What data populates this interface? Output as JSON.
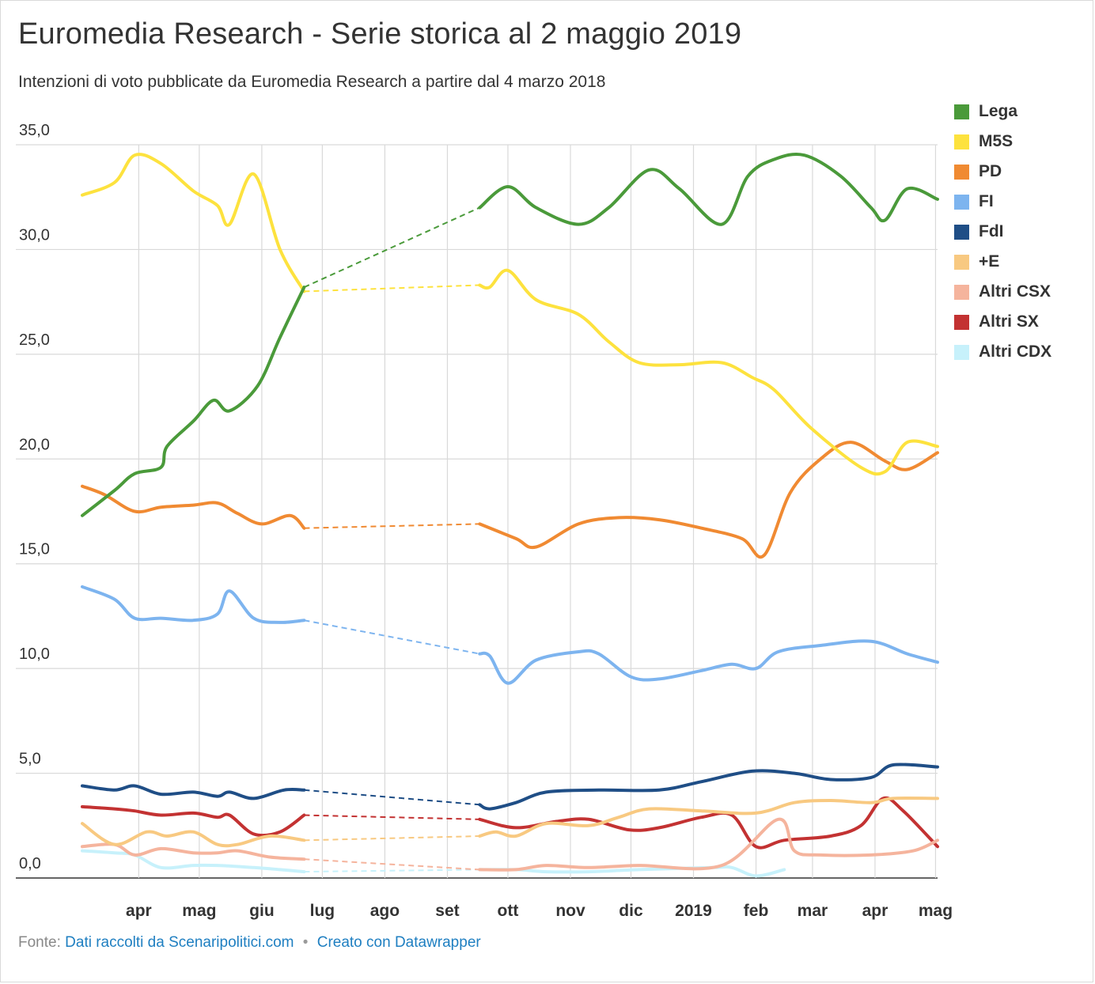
{
  "title": "Euromedia Research - Serie storica al 2 maggio 2019",
  "subtitle": "Intenzioni di voto pubblicate da Euromedia Research a partire dal 4 marzo 2018",
  "footer": {
    "prefix": "Fonte:",
    "source": "Dati raccolti da Scenaripolitici.com",
    "separator": "•",
    "credit": "Creato con Datawrapper"
  },
  "chart_data": {
    "type": "line",
    "title": "Euromedia Research - Serie storica al 2 maggio 2019",
    "subtitle": "Intenzioni di voto pubblicate da Euromedia Research a partire dal 4 marzo 2018",
    "xlabel": "",
    "ylabel": "",
    "ylim": [
      0,
      35
    ],
    "yticks": [
      0,
      5,
      10,
      15,
      20,
      25,
      30,
      35
    ],
    "ytick_labels": [
      "0,0",
      "5,0",
      "10,0",
      "15,0",
      "20,0",
      "25,0",
      "30,0",
      "35,0"
    ],
    "xlim": [
      "2018-03-04",
      "2019-05-02"
    ],
    "xticks": [
      {
        "date": "2018-04-01",
        "label": "apr"
      },
      {
        "date": "2018-05-01",
        "label": "mag"
      },
      {
        "date": "2018-06-01",
        "label": "giu"
      },
      {
        "date": "2018-07-01",
        "label": "lug"
      },
      {
        "date": "2018-08-01",
        "label": "ago"
      },
      {
        "date": "2018-09-01",
        "label": "set"
      },
      {
        "date": "2018-10-01",
        "label": "ott"
      },
      {
        "date": "2018-11-01",
        "label": "nov"
      },
      {
        "date": "2018-12-01",
        "label": "dic"
      },
      {
        "date": "2019-01-01",
        "label": "2019"
      },
      {
        "date": "2019-02-01",
        "label": "feb"
      },
      {
        "date": "2019-03-01",
        "label": "mar"
      },
      {
        "date": "2019-04-01",
        "label": "apr"
      },
      {
        "date": "2019-05-01",
        "label": "mag"
      }
    ],
    "gap": {
      "start": "2018-06-22",
      "end": "2018-09-17",
      "style": "dashed"
    },
    "grid": true,
    "legend": "right",
    "series": [
      {
        "name": "Lega",
        "color": "#4a9a3a",
        "points": [
          [
            "2018-03-04",
            17.3
          ],
          [
            "2018-03-20",
            18.5
          ],
          [
            "2018-03-30",
            19.3
          ],
          [
            "2018-04-12",
            19.6
          ],
          [
            "2018-04-15",
            20.6
          ],
          [
            "2018-04-28",
            21.8
          ],
          [
            "2018-05-08",
            22.8
          ],
          [
            "2018-05-16",
            22.3
          ],
          [
            "2018-05-30",
            23.5
          ],
          [
            "2018-06-10",
            25.8
          ],
          [
            "2018-06-22",
            28.2
          ],
          [
            "2018-09-17",
            32.0
          ],
          [
            "2018-10-01",
            33.0
          ],
          [
            "2018-10-15",
            32.0
          ],
          [
            "2018-11-05",
            31.2
          ],
          [
            "2018-11-20",
            32.0
          ],
          [
            "2018-12-10",
            33.8
          ],
          [
            "2018-12-25",
            32.9
          ],
          [
            "2019-01-15",
            31.2
          ],
          [
            "2019-01-28",
            33.5
          ],
          [
            "2019-02-10",
            34.3
          ],
          [
            "2019-02-25",
            34.5
          ],
          [
            "2019-03-15",
            33.5
          ],
          [
            "2019-03-30",
            32.0
          ],
          [
            "2019-04-06",
            31.4
          ],
          [
            "2019-04-17",
            32.9
          ],
          [
            "2019-05-02",
            32.4
          ]
        ]
      },
      {
        "name": "M5S",
        "color": "#fde23e",
        "points": [
          [
            "2018-03-04",
            32.6
          ],
          [
            "2018-03-20",
            33.2
          ],
          [
            "2018-03-30",
            34.5
          ],
          [
            "2018-04-12",
            34.1
          ],
          [
            "2018-04-28",
            32.8
          ],
          [
            "2018-05-10",
            32.1
          ],
          [
            "2018-05-16",
            31.2
          ],
          [
            "2018-05-28",
            33.6
          ],
          [
            "2018-06-10",
            30.0
          ],
          [
            "2018-06-22",
            28.0
          ],
          [
            "2018-09-17",
            28.3
          ],
          [
            "2018-09-22",
            28.2
          ],
          [
            "2018-10-01",
            29.0
          ],
          [
            "2018-10-15",
            27.6
          ],
          [
            "2018-11-05",
            26.9
          ],
          [
            "2018-11-20",
            25.6
          ],
          [
            "2018-12-05",
            24.6
          ],
          [
            "2018-12-25",
            24.5
          ],
          [
            "2019-01-15",
            24.6
          ],
          [
            "2019-01-30",
            23.9
          ],
          [
            "2019-02-10",
            23.3
          ],
          [
            "2019-02-28",
            21.5
          ],
          [
            "2019-03-25",
            19.6
          ],
          [
            "2019-04-06",
            19.4
          ],
          [
            "2019-04-17",
            20.8
          ],
          [
            "2019-05-02",
            20.6
          ]
        ]
      },
      {
        "name": "PD",
        "color": "#f08a32",
        "points": [
          [
            "2018-03-04",
            18.7
          ],
          [
            "2018-03-15",
            18.3
          ],
          [
            "2018-03-30",
            17.5
          ],
          [
            "2018-04-12",
            17.7
          ],
          [
            "2018-04-28",
            17.8
          ],
          [
            "2018-05-10",
            17.9
          ],
          [
            "2018-05-20",
            17.4
          ],
          [
            "2018-06-01",
            16.9
          ],
          [
            "2018-06-15",
            17.3
          ],
          [
            "2018-06-22",
            16.7
          ],
          [
            "2018-09-17",
            16.9
          ],
          [
            "2018-10-05",
            16.2
          ],
          [
            "2018-10-15",
            15.8
          ],
          [
            "2018-11-05",
            16.9
          ],
          [
            "2018-11-25",
            17.2
          ],
          [
            "2018-12-15",
            17.1
          ],
          [
            "2019-01-05",
            16.7
          ],
          [
            "2019-01-25",
            16.2
          ],
          [
            "2019-02-05",
            15.4
          ],
          [
            "2019-02-18",
            18.4
          ],
          [
            "2019-03-05",
            20.0
          ],
          [
            "2019-03-20",
            20.8
          ],
          [
            "2019-04-06",
            19.9
          ],
          [
            "2019-04-17",
            19.5
          ],
          [
            "2019-05-02",
            20.3
          ]
        ]
      },
      {
        "name": "FI",
        "color": "#7db4ef",
        "points": [
          [
            "2018-03-04",
            13.9
          ],
          [
            "2018-03-20",
            13.3
          ],
          [
            "2018-03-30",
            12.4
          ],
          [
            "2018-04-12",
            12.4
          ],
          [
            "2018-04-28",
            12.3
          ],
          [
            "2018-05-10",
            12.6
          ],
          [
            "2018-05-16",
            13.7
          ],
          [
            "2018-05-28",
            12.4
          ],
          [
            "2018-06-10",
            12.2
          ],
          [
            "2018-06-22",
            12.3
          ],
          [
            "2018-09-17",
            10.7
          ],
          [
            "2018-09-22",
            10.6
          ],
          [
            "2018-10-01",
            9.3
          ],
          [
            "2018-10-15",
            10.4
          ],
          [
            "2018-11-05",
            10.8
          ],
          [
            "2018-11-15",
            10.7
          ],
          [
            "2018-12-01",
            9.6
          ],
          [
            "2018-12-15",
            9.5
          ],
          [
            "2019-01-05",
            9.9
          ],
          [
            "2019-01-20",
            10.2
          ],
          [
            "2019-02-01",
            10.0
          ],
          [
            "2019-02-12",
            10.8
          ],
          [
            "2019-03-05",
            11.1
          ],
          [
            "2019-03-30",
            11.3
          ],
          [
            "2019-04-17",
            10.7
          ],
          [
            "2019-05-02",
            10.3
          ]
        ]
      },
      {
        "name": "FdI",
        "color": "#1f4e86",
        "points": [
          [
            "2018-03-04",
            4.4
          ],
          [
            "2018-03-20",
            4.2
          ],
          [
            "2018-03-30",
            4.4
          ],
          [
            "2018-04-12",
            4.0
          ],
          [
            "2018-04-28",
            4.1
          ],
          [
            "2018-05-10",
            3.9
          ],
          [
            "2018-05-16",
            4.1
          ],
          [
            "2018-05-28",
            3.8
          ],
          [
            "2018-06-12",
            4.2
          ],
          [
            "2018-06-22",
            4.2
          ],
          [
            "2018-09-17",
            3.5
          ],
          [
            "2018-09-22",
            3.3
          ],
          [
            "2018-10-05",
            3.6
          ],
          [
            "2018-10-20",
            4.1
          ],
          [
            "2018-11-15",
            4.2
          ],
          [
            "2018-12-15",
            4.2
          ],
          [
            "2019-01-05",
            4.6
          ],
          [
            "2019-01-30",
            5.1
          ],
          [
            "2019-02-20",
            5.0
          ],
          [
            "2019-03-10",
            4.7
          ],
          [
            "2019-03-30",
            4.8
          ],
          [
            "2019-04-10",
            5.4
          ],
          [
            "2019-05-02",
            5.3
          ]
        ]
      },
      {
        "name": "+E",
        "color": "#f8c981",
        "points": [
          [
            "2018-03-04",
            2.6
          ],
          [
            "2018-03-20",
            1.6
          ],
          [
            "2018-04-05",
            2.2
          ],
          [
            "2018-04-15",
            2.0
          ],
          [
            "2018-04-28",
            2.2
          ],
          [
            "2018-05-10",
            1.6
          ],
          [
            "2018-05-20",
            1.6
          ],
          [
            "2018-06-05",
            2.0
          ],
          [
            "2018-06-22",
            1.8
          ],
          [
            "2018-09-17",
            2.0
          ],
          [
            "2018-09-25",
            2.2
          ],
          [
            "2018-10-05",
            2.0
          ],
          [
            "2018-10-20",
            2.6
          ],
          [
            "2018-11-10",
            2.5
          ],
          [
            "2018-11-25",
            2.9
          ],
          [
            "2018-12-10",
            3.3
          ],
          [
            "2019-01-05",
            3.2
          ],
          [
            "2019-02-01",
            3.1
          ],
          [
            "2019-02-20",
            3.6
          ],
          [
            "2019-03-10",
            3.7
          ],
          [
            "2019-03-30",
            3.6
          ],
          [
            "2019-04-10",
            3.8
          ],
          [
            "2019-05-02",
            3.8
          ]
        ]
      },
      {
        "name": "Altri CSX",
        "color": "#f5b49d",
        "points": [
          [
            "2018-03-04",
            1.5
          ],
          [
            "2018-03-20",
            1.6
          ],
          [
            "2018-03-30",
            1.1
          ],
          [
            "2018-04-12",
            1.4
          ],
          [
            "2018-04-28",
            1.2
          ],
          [
            "2018-05-10",
            1.2
          ],
          [
            "2018-05-20",
            1.3
          ],
          [
            "2018-06-05",
            1.0
          ],
          [
            "2018-06-22",
            0.9
          ],
          [
            "2018-09-17",
            0.4
          ],
          [
            "2018-10-05",
            0.4
          ],
          [
            "2018-10-20",
            0.6
          ],
          [
            "2018-11-10",
            0.5
          ],
          [
            "2018-12-05",
            0.6
          ],
          [
            "2019-01-15",
            0.6
          ],
          [
            "2019-02-12",
            2.8
          ],
          [
            "2019-02-20",
            1.3
          ],
          [
            "2019-03-05",
            1.1
          ],
          [
            "2019-03-30",
            1.1
          ],
          [
            "2019-04-20",
            1.3
          ],
          [
            "2019-05-02",
            1.8
          ]
        ]
      },
      {
        "name": "Altri SX",
        "color": "#c33232",
        "points": [
          [
            "2018-03-04",
            3.4
          ],
          [
            "2018-03-20",
            3.3
          ],
          [
            "2018-03-30",
            3.2
          ],
          [
            "2018-04-12",
            3.0
          ],
          [
            "2018-04-28",
            3.1
          ],
          [
            "2018-05-10",
            2.9
          ],
          [
            "2018-05-16",
            3.0
          ],
          [
            "2018-05-28",
            2.1
          ],
          [
            "2018-06-10",
            2.2
          ],
          [
            "2018-06-22",
            3.0
          ],
          [
            "2018-09-17",
            2.8
          ],
          [
            "2018-10-05",
            2.4
          ],
          [
            "2018-10-25",
            2.7
          ],
          [
            "2018-11-10",
            2.8
          ],
          [
            "2018-11-30",
            2.3
          ],
          [
            "2018-12-15",
            2.4
          ],
          [
            "2019-01-05",
            2.9
          ],
          [
            "2019-01-20",
            3.0
          ],
          [
            "2019-02-01",
            1.5
          ],
          [
            "2019-02-15",
            1.8
          ],
          [
            "2019-03-10",
            2.0
          ],
          [
            "2019-03-25",
            2.5
          ],
          [
            "2019-04-05",
            3.8
          ],
          [
            "2019-04-15",
            3.2
          ],
          [
            "2019-05-02",
            1.5
          ]
        ]
      },
      {
        "name": "Altri CDX",
        "color": "#c7f1fb",
        "points": [
          [
            "2018-03-04",
            1.3
          ],
          [
            "2018-03-20",
            1.2
          ],
          [
            "2018-03-30",
            1.1
          ],
          [
            "2018-04-12",
            0.5
          ],
          [
            "2018-04-28",
            0.6
          ],
          [
            "2018-05-10",
            0.6
          ],
          [
            "2018-05-28",
            0.5
          ],
          [
            "2018-06-10",
            0.4
          ],
          [
            "2018-06-22",
            0.3
          ],
          [
            "2018-09-17",
            0.4
          ],
          [
            "2018-10-05",
            0.4
          ],
          [
            "2018-10-20",
            0.3
          ],
          [
            "2018-11-10",
            0.3
          ],
          [
            "2018-12-05",
            0.4
          ],
          [
            "2019-01-10",
            0.5
          ],
          [
            "2019-01-20",
            0.5
          ],
          [
            "2019-02-01",
            0.1
          ],
          [
            "2019-02-15",
            0.4
          ]
        ]
      }
    ]
  }
}
